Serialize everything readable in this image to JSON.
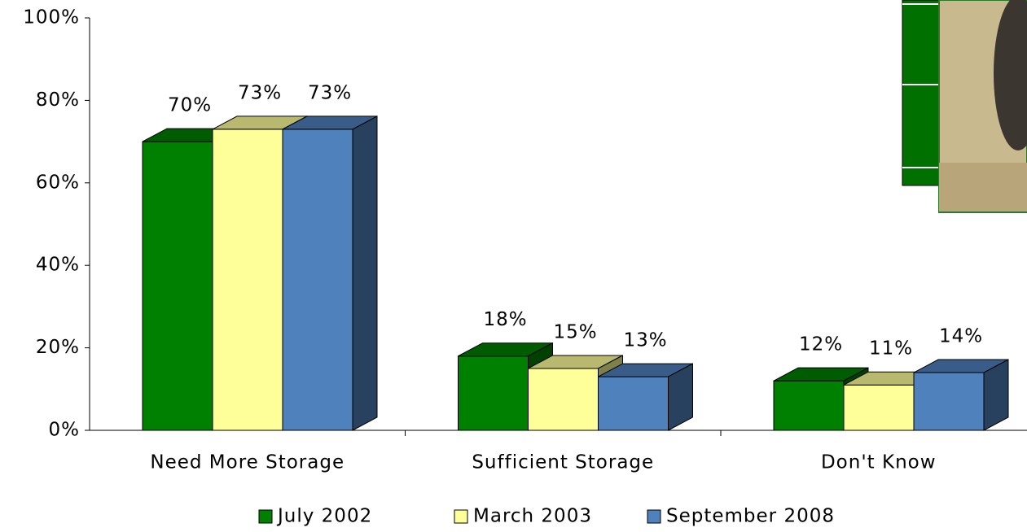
{
  "chart_data": {
    "type": "bar3d",
    "categories": [
      "Need More Storage",
      "Sufficient Storage",
      "Don't Know"
    ],
    "series": [
      {
        "name": "July 2002",
        "color": "#008000",
        "values": [
          70,
          18,
          12
        ],
        "value_labels": [
          "70%",
          "18%",
          "12%"
        ]
      },
      {
        "name": "March 2003",
        "color": "#ffff99",
        "values": [
          73,
          15,
          11
        ],
        "value_labels": [
          "73%",
          "15%",
          "11%"
        ]
      },
      {
        "name": "September 2008",
        "color": "#4f81bd",
        "values": [
          73,
          13,
          14
        ],
        "value_labels": [
          "73%",
          "13%",
          "14%"
        ]
      }
    ],
    "ylim": [
      0,
      100
    ],
    "yticks": [
      {
        "value": 0,
        "label": "0%"
      },
      {
        "value": 20,
        "label": "20%"
      },
      {
        "value": 40,
        "label": "40%"
      },
      {
        "value": 60,
        "label": "60%"
      },
      {
        "value": 80,
        "label": "80%"
      },
      {
        "value": 100,
        "label": "100%"
      }
    ],
    "legend": "bottom",
    "grid": false
  }
}
